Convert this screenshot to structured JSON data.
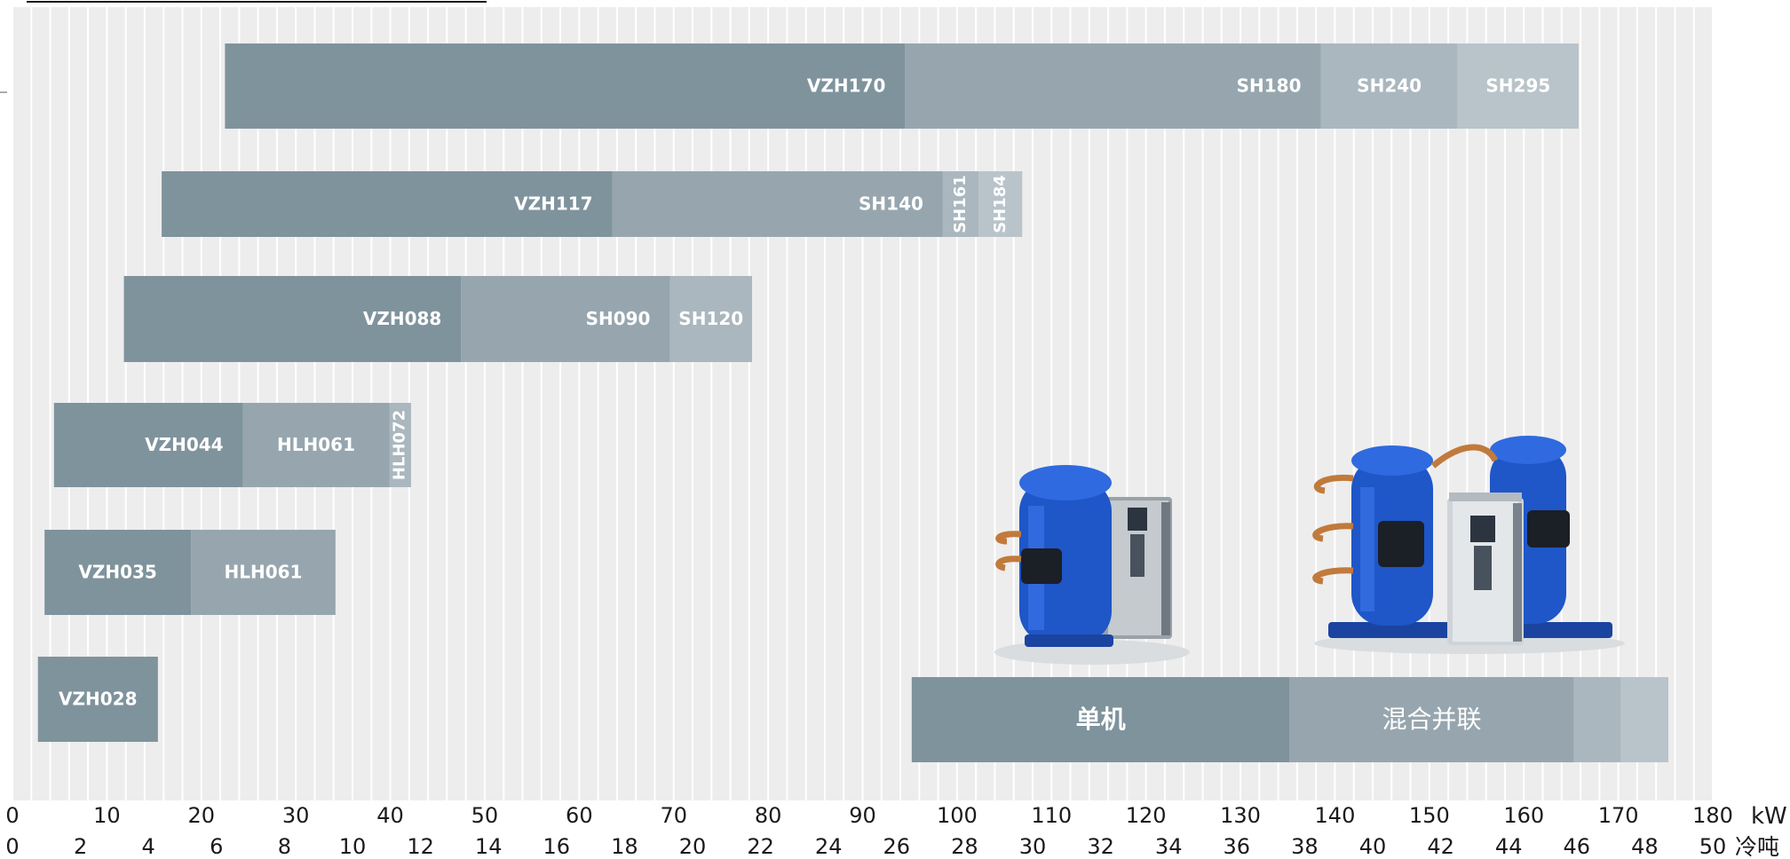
{
  "chart_data": {
    "type": "bar",
    "orientation": "horizontal",
    "stacked": true,
    "x_unit_primary": "kW",
    "x_unit_secondary": "冷吨",
    "xlim": [
      0,
      180
    ],
    "kw_ticks": [
      0,
      10,
      20,
      30,
      40,
      50,
      60,
      70,
      80,
      90,
      100,
      110,
      120,
      130,
      140,
      150,
      160,
      170,
      180
    ],
    "ton_ticks": [
      0,
      2,
      4,
      6,
      8,
      10,
      12,
      14,
      16,
      18,
      20,
      22,
      24,
      26,
      28,
      30,
      32,
      34,
      36,
      38,
      40,
      42,
      44,
      46,
      48,
      50
    ],
    "colors": {
      "background": "#ededed",
      "stripe": "#ffffff",
      "single": "#7f939c",
      "combo": "#97a6ae",
      "combo_light": "#aab7be",
      "combo_lighter": "#b9c4ca"
    },
    "rows": [
      {
        "segments": [
          {
            "label": "VZH170",
            "start": 22.5,
            "end": 94.5,
            "kind": "single"
          },
          {
            "label": "SH180",
            "start": 94.5,
            "end": 138.5,
            "kind": "combo"
          },
          {
            "label": "SH240",
            "start": 138.5,
            "end": 153,
            "kind": "combo_light"
          },
          {
            "label": "SH295",
            "start": 153,
            "end": 165.8,
            "kind": "combo_lighter"
          }
        ]
      },
      {
        "segments": [
          {
            "label": "VZH117",
            "start": 15.8,
            "end": 63.5,
            "kind": "single"
          },
          {
            "label": "SH140",
            "start": 63.5,
            "end": 98.5,
            "kind": "combo"
          },
          {
            "label": "SH161",
            "start": 98.5,
            "end": 102.3,
            "kind": "combo_light",
            "vertical": true
          },
          {
            "label": "SH184",
            "start": 102.3,
            "end": 106.9,
            "kind": "combo_lighter",
            "vertical": true
          }
        ]
      },
      {
        "segments": [
          {
            "label": "VZH088",
            "start": 11.8,
            "end": 47.5,
            "kind": "single"
          },
          {
            "label": "SH090",
            "start": 47.5,
            "end": 69.6,
            "kind": "combo"
          },
          {
            "label": "SH120",
            "start": 69.6,
            "end": 78.3,
            "kind": "combo_light"
          }
        ]
      },
      {
        "segments": [
          {
            "label": "VZH044",
            "start": 4.4,
            "end": 24.4,
            "kind": "single"
          },
          {
            "label": "HLH061",
            "start": 24.4,
            "end": 39.9,
            "kind": "combo"
          },
          {
            "label": "HLH072",
            "start": 39.9,
            "end": 42.2,
            "kind": "combo_light",
            "vertical": true
          }
        ]
      },
      {
        "segments": [
          {
            "label": "VZH035",
            "start": 3.4,
            "end": 18.9,
            "kind": "single"
          },
          {
            "label": "HLH061",
            "start": 18.9,
            "end": 34.2,
            "kind": "combo"
          }
        ]
      },
      {
        "segments": [
          {
            "label": "VZH028",
            "start": 2.7,
            "end": 15.4,
            "kind": "single"
          }
        ]
      }
    ],
    "legend": {
      "placement": "bottom-right",
      "segments": [
        {
          "label": "单机",
          "start": 95.2,
          "end": 135.2,
          "kind": "single"
        },
        {
          "label": "混合并联",
          "start": 135.2,
          "end": 165.3,
          "kind": "combo"
        },
        {
          "label": "",
          "start": 165.3,
          "end": 170.3,
          "kind": "combo_light"
        },
        {
          "label": "",
          "start": 170.3,
          "end": 175.3,
          "kind": "combo_lighter"
        }
      ]
    }
  },
  "illustrations": [
    {
      "name": "single-compressor-with-drive-illustration"
    },
    {
      "name": "tandem-compressors-with-drive-illustration"
    }
  ]
}
